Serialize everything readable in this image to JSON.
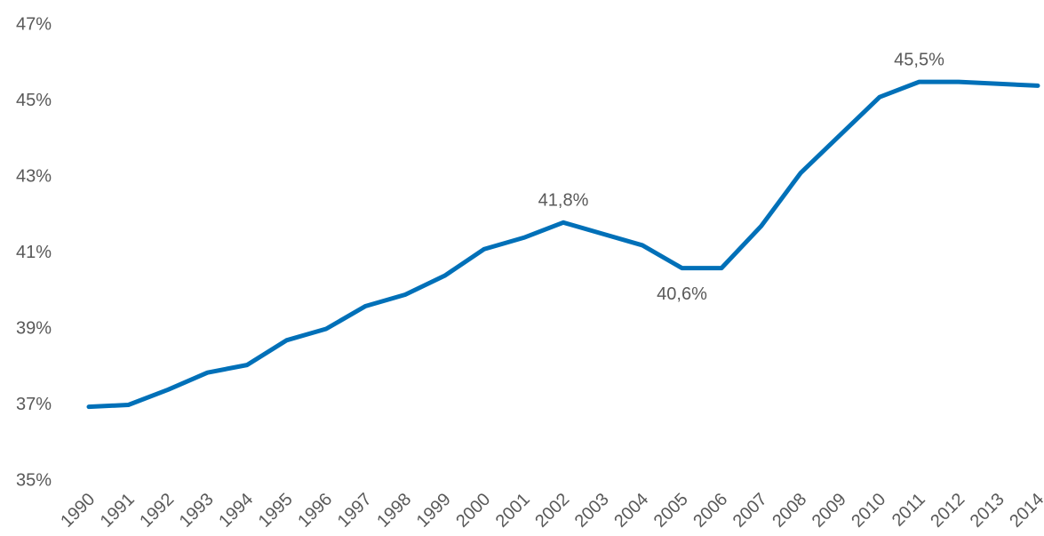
{
  "chart_data": {
    "type": "line",
    "categories": [
      "1990",
      "1991",
      "1992",
      "1993",
      "1994",
      "1995",
      "1996",
      "1997",
      "1998",
      "1999",
      "2000",
      "2001",
      "2002",
      "2003",
      "2004",
      "2005",
      "2006",
      "2007",
      "2008",
      "2009",
      "2010",
      "2011",
      "2012",
      "2013",
      "2014"
    ],
    "values": [
      36.95,
      37.0,
      37.4,
      37.85,
      38.05,
      38.7,
      39.0,
      39.6,
      39.9,
      40.4,
      41.1,
      41.4,
      41.8,
      41.5,
      41.2,
      40.6,
      40.6,
      41.7,
      43.1,
      44.1,
      45.1,
      45.5,
      45.5,
      45.45,
      45.4
    ],
    "value_labels": [
      null,
      null,
      null,
      null,
      null,
      null,
      null,
      null,
      null,
      null,
      null,
      null,
      "41,8%",
      null,
      null,
      "40,6%",
      null,
      null,
      null,
      null,
      null,
      "45,5%",
      null,
      null,
      null
    ],
    "color": "#0070b8",
    "ylim": [
      35,
      47
    ],
    "yticks": [
      {
        "value": 35,
        "label": "35%"
      },
      {
        "value": 37,
        "label": "37%"
      },
      {
        "value": 39,
        "label": "39%"
      },
      {
        "value": 41,
        "label": "41%"
      },
      {
        "value": 43,
        "label": "43%"
      },
      {
        "value": 45,
        "label": "45%"
      },
      {
        "value": 47,
        "label": "47%"
      }
    ],
    "grid": false
  }
}
